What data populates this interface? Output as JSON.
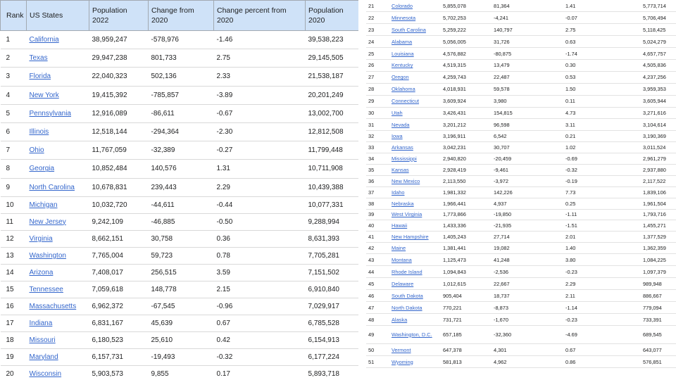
{
  "headers": [
    "Rank",
    "US States",
    "Population 2022",
    "Change from 2020",
    "Change percent from 2020",
    "Population 2020"
  ],
  "rows": [
    [
      "1",
      "California",
      "38,959,247",
      "-578,976",
      "-1.46",
      "39,538,223"
    ],
    [
      "2",
      "Texas",
      "29,947,238",
      "801,733",
      "2.75",
      "29,145,505"
    ],
    [
      "3",
      "Florida",
      "22,040,323",
      "502,136",
      "2.33",
      "21,538,187"
    ],
    [
      "4",
      "New York",
      "19,415,392",
      "-785,857",
      "-3.89",
      "20,201,249"
    ],
    [
      "5",
      "Pennsylvania",
      "12,916,089",
      "-86,611",
      "-0.67",
      "13,002,700"
    ],
    [
      "6",
      "Illinois",
      "12,518,144",
      "-294,364",
      "-2.30",
      "12,812,508"
    ],
    [
      "7",
      "Ohio",
      "11,767,059",
      "-32,389",
      "-0.27",
      "11,799,448"
    ],
    [
      "8",
      "Georgia",
      "10,852,484",
      "140,576",
      "1.31",
      "10,711,908"
    ],
    [
      "9",
      "North Carolina",
      "10,678,831",
      "239,443",
      "2.29",
      "10,439,388"
    ],
    [
      "10",
      "Michigan",
      "10,032,720",
      "-44,611",
      "-0.44",
      "10,077,331"
    ],
    [
      "11",
      "New Jersey",
      "9,242,109",
      "-46,885",
      "-0.50",
      "9,288,994"
    ],
    [
      "12",
      "Virginia",
      "8,662,151",
      "30,758",
      "0.36",
      "8,631,393"
    ],
    [
      "13",
      "Washington",
      "7,765,004",
      "59,723",
      "0.78",
      "7,705,281"
    ],
    [
      "14",
      "Arizona",
      "7,408,017",
      "256,515",
      "3.59",
      "7,151,502"
    ],
    [
      "15",
      "Tennessee",
      "7,059,618",
      "148,778",
      "2.15",
      "6,910,840"
    ],
    [
      "16",
      "Massachusetts",
      "6,962,372",
      "-67,545",
      "-0.96",
      "7,029,917"
    ],
    [
      "17",
      "Indiana",
      "6,831,167",
      "45,639",
      "0.67",
      "6,785,528"
    ],
    [
      "18",
      "Missouri",
      "6,180,523",
      "25,610",
      "0.42",
      "6,154,913"
    ],
    [
      "19",
      "Maryland",
      "6,157,731",
      "-19,493",
      "-0.32",
      "6,177,224"
    ],
    [
      "20",
      "Wisconsin",
      "5,903,573",
      "9,855",
      "0.17",
      "5,893,718"
    ],
    [
      "21",
      "Colorado",
      "5,855,078",
      "81,364",
      "1.41",
      "5,773,714"
    ],
    [
      "22",
      "Minnesota",
      "5,702,253",
      "-4,241",
      "-0.07",
      "5,706,494"
    ],
    [
      "23",
      "South Carolina",
      "5,259,222",
      "140,797",
      "2.75",
      "5,118,425"
    ],
    [
      "24",
      "Alabama",
      "5,056,005",
      "31,726",
      "0.63",
      "5,024,279"
    ],
    [
      "25",
      "Louisiana",
      "4,576,882",
      "-80,875",
      "-1.74",
      "4,657,757"
    ],
    [
      "26",
      "Kentucky",
      "4,519,315",
      "13,479",
      "0.30",
      "4,505,836"
    ],
    [
      "27",
      "Oregon",
      "4,259,743",
      "22,487",
      "0.53",
      "4,237,256"
    ],
    [
      "28",
      "Oklahoma",
      "4,018,931",
      "59,578",
      "1.50",
      "3,959,353"
    ],
    [
      "29",
      "Connecticut",
      "3,609,924",
      "3,980",
      "0.11",
      "3,605,944"
    ],
    [
      "30",
      "Utah",
      "3,426,431",
      "154,815",
      "4.73",
      "3,271,616"
    ],
    [
      "31",
      "Nevada",
      "3,201,212",
      "96,598",
      "3.11",
      "3,104,614"
    ],
    [
      "32",
      "Iowa",
      "3,196,911",
      "6,542",
      "0.21",
      "3,190,369"
    ],
    [
      "33",
      "Arkansas",
      "3,042,231",
      "30,707",
      "1.02",
      "3,011,524"
    ],
    [
      "34",
      "Mississippi",
      "2,940,820",
      "-20,459",
      "-0.69",
      "2,961,279"
    ],
    [
      "35",
      "Kansas",
      "2,928,419",
      "-9,461",
      "-0.32",
      "2,937,880"
    ],
    [
      "36",
      "New Mexico",
      "2,113,550",
      "-3,972",
      "-0.19",
      "2,117,522"
    ],
    [
      "37",
      "Idaho",
      "1,981,332",
      "142,226",
      "7.73",
      "1,839,106"
    ],
    [
      "38",
      "Nebraska",
      "1,966,441",
      "4,937",
      "0.25",
      "1,961,504"
    ],
    [
      "39",
      "West Virginia",
      "1,773,866",
      "-19,850",
      "-1.11",
      "1,793,716"
    ],
    [
      "40",
      "Hawaii",
      "1,433,336",
      "-21,935",
      "-1.51",
      "1,455,271"
    ],
    [
      "41",
      "New Hampshire",
      "1,405,243",
      "27,714",
      "2.01",
      "1,377,529"
    ],
    [
      "42",
      "Maine",
      "1,381,441",
      "19,082",
      "1.40",
      "1,362,359"
    ],
    [
      "43",
      "Montana",
      "1,125,473",
      "41,248",
      "3.80",
      "1,084,225"
    ],
    [
      "44",
      "Rhode Island",
      "1,094,843",
      "-2,536",
      "-0.23",
      "1,097,379"
    ],
    [
      "45",
      "Delaware",
      "1,012,615",
      "22,667",
      "2.29",
      "989,948"
    ],
    [
      "46",
      "South Dakota",
      "905,404",
      "18,737",
      "2.11",
      "886,667"
    ],
    [
      "47",
      "North Dakota",
      "770,221",
      "-8,873",
      "-1.14",
      "779,094"
    ],
    [
      "48",
      "Alaska",
      "731,721",
      "-1,670",
      "-0.23",
      "733,391"
    ],
    [
      "49",
      "Washington, D.C.",
      "657,185",
      "-32,360",
      "-4.69",
      "689,545"
    ],
    [
      "50",
      "Vermont",
      "647,378",
      "4,301",
      "0.67",
      "643,077"
    ],
    [
      "51",
      "Wyoming",
      "581,813",
      "4,962",
      "0.86",
      "576,851"
    ]
  ]
}
